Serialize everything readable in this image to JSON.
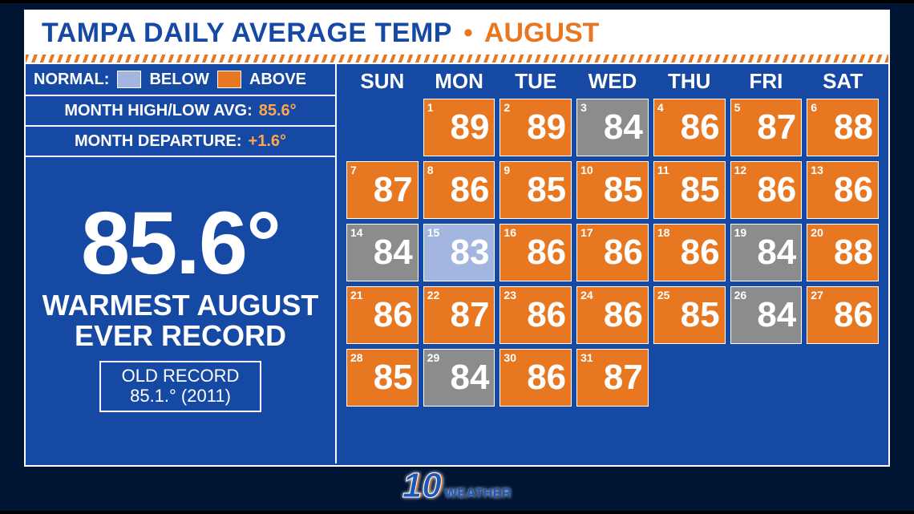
{
  "title": {
    "main": "TAMPA DAILY AVERAGE TEMP",
    "month": "AUGUST"
  },
  "colors": {
    "panel_bg": "#1549a4",
    "accent": "#e87722",
    "below_swatch": "#a3b6e0",
    "above_swatch": "#e87722",
    "normal_cell": "#8c8c8c",
    "text": "#ffffff"
  },
  "legend": {
    "label": "NORMAL:",
    "below": "BELOW",
    "above": "ABOVE"
  },
  "stats": {
    "high_low_label": "MONTH HIGH/LOW AVG:",
    "high_low_value": "85.6°",
    "departure_label": "MONTH DEPARTURE:",
    "departure_value": "+1.6°"
  },
  "headline": {
    "big_temp": "85.6°",
    "line1": "WARMEST AUGUST",
    "line2": "EVER RECORD",
    "old_record_label": "OLD RECORD",
    "old_record_value": "85.1.° (2011)"
  },
  "days_of_week": [
    "SUN",
    "MON",
    "TUE",
    "WED",
    "THU",
    "FRI",
    "SAT"
  ],
  "calendar": {
    "lead_blanks": 1,
    "days": [
      {
        "n": 1,
        "t": 89,
        "s": "above"
      },
      {
        "n": 2,
        "t": 89,
        "s": "above"
      },
      {
        "n": 3,
        "t": 84,
        "s": "normal"
      },
      {
        "n": 4,
        "t": 86,
        "s": "above"
      },
      {
        "n": 5,
        "t": 87,
        "s": "above"
      },
      {
        "n": 6,
        "t": 88,
        "s": "above"
      },
      {
        "n": 7,
        "t": 87,
        "s": "above"
      },
      {
        "n": 8,
        "t": 86,
        "s": "above"
      },
      {
        "n": 9,
        "t": 85,
        "s": "above"
      },
      {
        "n": 10,
        "t": 85,
        "s": "above"
      },
      {
        "n": 11,
        "t": 85,
        "s": "above"
      },
      {
        "n": 12,
        "t": 86,
        "s": "above"
      },
      {
        "n": 13,
        "t": 86,
        "s": "above"
      },
      {
        "n": 14,
        "t": 84,
        "s": "normal"
      },
      {
        "n": 15,
        "t": 83,
        "s": "below"
      },
      {
        "n": 16,
        "t": 86,
        "s": "above"
      },
      {
        "n": 17,
        "t": 86,
        "s": "above"
      },
      {
        "n": 18,
        "t": 86,
        "s": "above"
      },
      {
        "n": 19,
        "t": 84,
        "s": "normal"
      },
      {
        "n": 20,
        "t": 88,
        "s": "above"
      },
      {
        "n": 21,
        "t": 86,
        "s": "above"
      },
      {
        "n": 22,
        "t": 87,
        "s": "above"
      },
      {
        "n": 23,
        "t": 86,
        "s": "above"
      },
      {
        "n": 24,
        "t": 86,
        "s": "above"
      },
      {
        "n": 25,
        "t": 85,
        "s": "above"
      },
      {
        "n": 26,
        "t": 84,
        "s": "normal"
      },
      {
        "n": 27,
        "t": 86,
        "s": "above"
      },
      {
        "n": 28,
        "t": 85,
        "s": "above"
      },
      {
        "n": 29,
        "t": 84,
        "s": "normal"
      },
      {
        "n": 30,
        "t": 86,
        "s": "above"
      },
      {
        "n": 31,
        "t": 87,
        "s": "above"
      }
    ]
  },
  "logo": {
    "brand": "10",
    "word": "WEATHER"
  }
}
